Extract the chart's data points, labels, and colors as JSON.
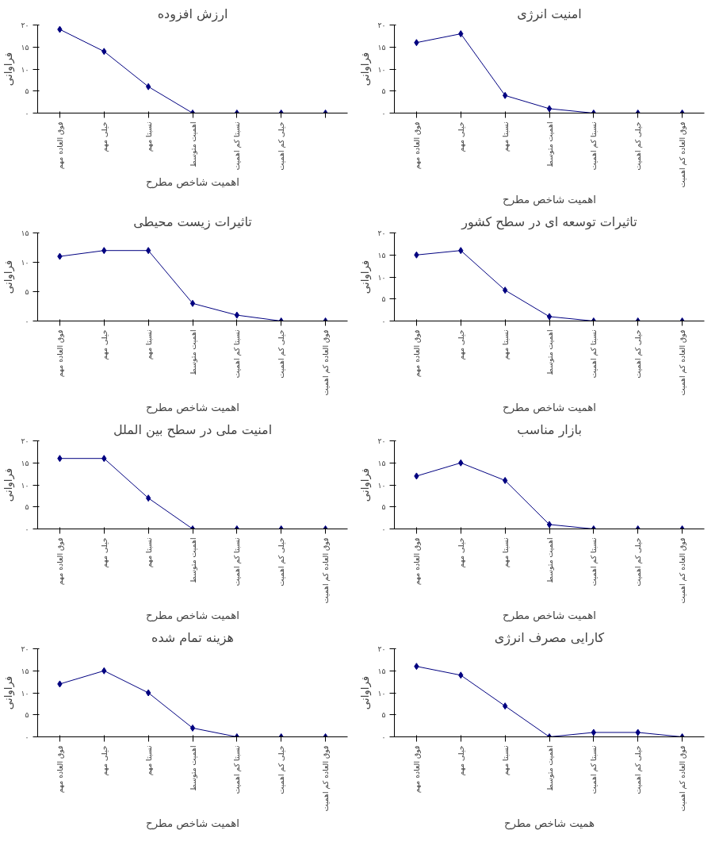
{
  "chart_data": [
    {
      "type": "line",
      "title": "ارزش افزوده",
      "xlabel": "اهمیت شاخص مطرح",
      "ylabel": "فراوانی",
      "categories": [
        "فوق العاده مهم",
        "خیلی مهم",
        "نسبتا مهم",
        "اهمیت متوسط",
        "نسبتا کم اهمیت",
        "خیلی کم اهمیت",
        null
      ],
      "values": [
        19,
        14,
        6,
        0,
        0,
        0,
        0
      ],
      "color": "#000080",
      "marker": "diamond",
      "ylim": [
        0,
        20
      ],
      "yticks": [
        {
          "value": 0,
          "label": "۰"
        },
        {
          "value": 5,
          "label": "۵"
        },
        {
          "value": 10,
          "label": "۱۰"
        },
        {
          "value": 15,
          "label": "۱۵"
        },
        {
          "value": 20,
          "label": "۲۰"
        }
      ]
    },
    {
      "type": "line",
      "title": "امنیت انرژی",
      "xlabel": "اهمیت شاخص مطرح",
      "ylabel": "فراوانی",
      "categories": [
        "فوق العاده مهم",
        "خیلی مهم",
        "نسبتا مهم",
        "اهمیت متوسط",
        "نسبتا کم اهمیت",
        "خیلی کم اهمیت",
        "فوق العاده کم اهمیت"
      ],
      "values": [
        16,
        18,
        4,
        1,
        0,
        0,
        0
      ],
      "color": "#000080",
      "marker": "diamond",
      "ylim": [
        0,
        20
      ],
      "yticks": [
        {
          "value": 0,
          "label": "۰"
        },
        {
          "value": 5,
          "label": "۵"
        },
        {
          "value": 10,
          "label": "۱۰"
        },
        {
          "value": 15,
          "label": "۱۵"
        },
        {
          "value": 20,
          "label": "۲۰"
        }
      ]
    },
    {
      "type": "line",
      "title": "تاثیرات زیست محیطی",
      "xlabel": "اهمیت شاخص مطرح",
      "ylabel": "فراوانی",
      "categories": [
        "فوق العاده مهم",
        "خیلی مهم",
        "نسبتا مهم",
        "اهمیت متوسط",
        "نسبتا کم اهمیت",
        "خیلی کم اهمیت",
        "فوق العاده کم اهمیت"
      ],
      "values": [
        11,
        12,
        12,
        3,
        1,
        0,
        0
      ],
      "color": "#000080",
      "marker": "diamond",
      "ylim": [
        0,
        15
      ],
      "yticks": [
        {
          "value": 0,
          "label": "۰"
        },
        {
          "value": 5,
          "label": "۵"
        },
        {
          "value": 10,
          "label": "۱۰"
        },
        {
          "value": 15,
          "label": "۱۵"
        }
      ]
    },
    {
      "type": "line",
      "title": "تاثیرات توسعه ای در سطح کشور",
      "xlabel": "اهمیت شاخص مطرح",
      "ylabel": "فراوانی",
      "categories": [
        "فوق العاده مهم",
        "خیلی مهم",
        "نسبتا مهم",
        "اهمیت متوسط",
        "نسبتا کم اهمیت",
        "خیلی کم اهمیت",
        "فوق العاده کم اهمیت"
      ],
      "values": [
        15,
        16,
        7,
        1,
        0,
        0,
        0
      ],
      "color": "#000080",
      "marker": "diamond",
      "ylim": [
        0,
        20
      ],
      "yticks": [
        {
          "value": 0,
          "label": "۰"
        },
        {
          "value": 5,
          "label": "۵"
        },
        {
          "value": 10,
          "label": "۱۰"
        },
        {
          "value": 15,
          "label": "۱۵"
        },
        {
          "value": 20,
          "label": "۲۰"
        }
      ]
    },
    {
      "type": "line",
      "title": "امنیت ملی در سطح بین الملل",
      "xlabel": "اهمیت شاخص مطرح",
      "ylabel": "فراوانی",
      "categories": [
        "فوق العاده مهم",
        "خیلی مهم",
        "نسبتا مهم",
        "اهمیت متوسط",
        "نسبتا کم اهمیت",
        "خیلی کم اهمیت",
        "فوق العاده کم اهمیت"
      ],
      "values": [
        16,
        16,
        7,
        0,
        0,
        0,
        0
      ],
      "color": "#000080",
      "marker": "diamond",
      "ylim": [
        0,
        20
      ],
      "yticks": [
        {
          "value": 0,
          "label": "۰"
        },
        {
          "value": 5,
          "label": "۵"
        },
        {
          "value": 10,
          "label": "۱۰"
        },
        {
          "value": 15,
          "label": "۱۵"
        },
        {
          "value": 20,
          "label": "۲۰"
        }
      ]
    },
    {
      "type": "line",
      "title": "بازار مناسب",
      "xlabel": "اهمیت شاخص مطرح",
      "ylabel": "فراوانی",
      "categories": [
        "فوق العاده مهم",
        "خیلی مهم",
        "نسبتا مهم",
        "اهمیت متوسط",
        "نسبتا کم اهمیت",
        "خیلی کم اهمیت",
        "فوق العاده کم اهمیت"
      ],
      "values": [
        12,
        15,
        11,
        1,
        0,
        0,
        0
      ],
      "color": "#000080",
      "marker": "diamond",
      "ylim": [
        0,
        20
      ],
      "yticks": [
        {
          "value": 0,
          "label": "۰"
        },
        {
          "value": 5,
          "label": "۵"
        },
        {
          "value": 10,
          "label": "۱۰"
        },
        {
          "value": 15,
          "label": "۱۵"
        },
        {
          "value": 20,
          "label": "۲۰"
        }
      ]
    },
    {
      "type": "line",
      "title": "هزینه تمام شده",
      "xlabel": "اهمیت شاخص مطرح",
      "ylabel": "فراوانی",
      "categories": [
        "فوق العاده مهم",
        "خیلی مهم",
        "نسبتا مهم",
        "اهمیت متوسط",
        "نسبتا کم اهمیت",
        "خیلی کم اهمیت",
        "فوق العاده کم اهمیت"
      ],
      "values": [
        12,
        15,
        10,
        2,
        0,
        0,
        0
      ],
      "color": "#000080",
      "marker": "diamond",
      "ylim": [
        0,
        20
      ],
      "yticks": [
        {
          "value": 0,
          "label": "۰"
        },
        {
          "value": 5,
          "label": "۵"
        },
        {
          "value": 10,
          "label": "۱۰"
        },
        {
          "value": 15,
          "label": "۱۵"
        },
        {
          "value": 20,
          "label": "۲۰"
        }
      ]
    },
    {
      "type": "line",
      "title": "کارایی مصرف انرژی",
      "xlabel": "همیت شاخص مطرح",
      "ylabel": "فراوانی",
      "categories": [
        "فوق العاده مهم",
        "خیلی مهم",
        "نسبتا مهم",
        "اهمیت متوسط",
        "نسبتا کم اهمیت",
        "خیلی کم اهمیت",
        "فوق العاده کم اهمیت"
      ],
      "values": [
        16,
        14,
        7,
        0,
        1,
        1,
        0
      ],
      "color": "#000080",
      "marker": "diamond",
      "ylim": [
        0,
        20
      ],
      "yticks": [
        {
          "value": 0,
          "label": "۰"
        },
        {
          "value": 5,
          "label": "۵"
        },
        {
          "value": 10,
          "label": "۱۰"
        },
        {
          "value": 15,
          "label": "۱۵"
        },
        {
          "value": 20,
          "label": "۲۰"
        }
      ]
    }
  ]
}
